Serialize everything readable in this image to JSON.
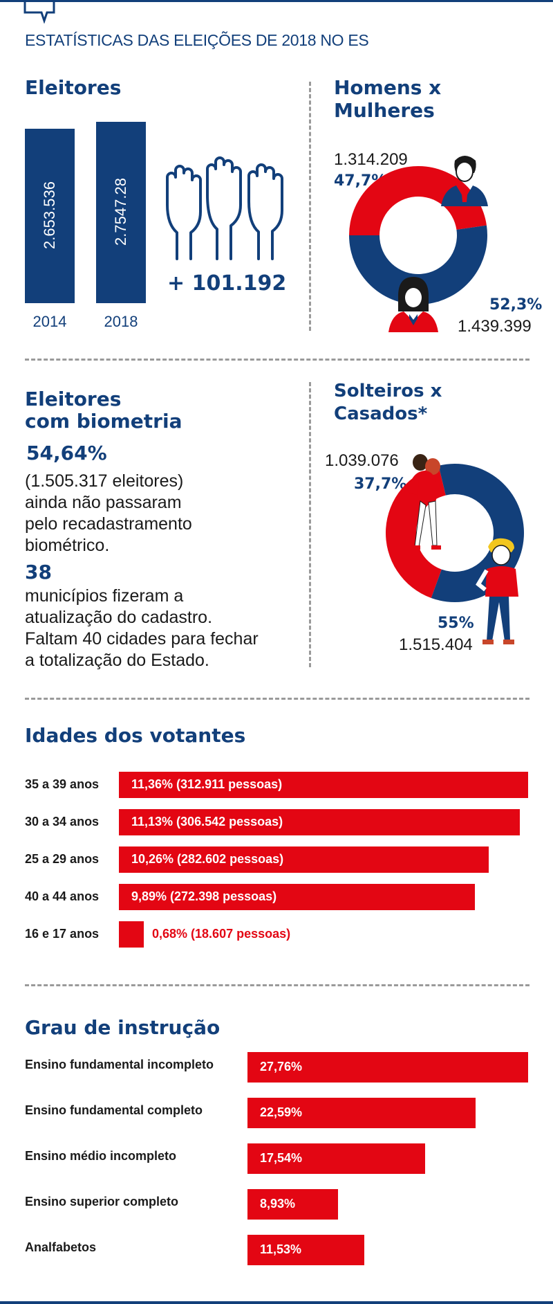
{
  "page": {
    "title": "ESTATÍSTICAS DAS ELEIÇÕES DE 2018 NO ES"
  },
  "colors": {
    "navy": "#123f7a",
    "red": "#e30613",
    "gray": "#9a9a9a"
  },
  "eleitores": {
    "heading": "Eleitores",
    "diff": "+ 101.192",
    "icon": "raised-hands-icon"
  },
  "genero": {
    "heading_line1": "Homens x",
    "heading_line2": "Mulheres",
    "homens_value": "1.314.209",
    "homens_pct": "47,7%",
    "mulheres_value": "1.439.399",
    "mulheres_pct": "52,3%"
  },
  "biometria": {
    "heading_line1": "Eleitores",
    "heading_line2": "com biometria",
    "pct": "54,64%",
    "text_lines": [
      "(1.505.317 eleitores)",
      "ainda não passaram",
      "pelo recadastramento",
      "biométrico."
    ],
    "municipios_num": "38",
    "municipios_lines": [
      "municípios fizeram a",
      "atualização do cadastro.",
      "Faltam 40 cidades para fechar",
      "a totalização do Estado."
    ]
  },
  "estado_civil": {
    "heading_line1": "Solteiros x",
    "heading_line2": "Casados*",
    "casados_value": "1.039.076",
    "casados_pct": "37,7%",
    "solteiros_value": "1.515.404",
    "solteiros_pct": "55%"
  },
  "idades": {
    "heading": "Idades dos votantes"
  },
  "instrucao": {
    "heading": "Grau de instrução"
  },
  "chart_data": [
    {
      "id": "eleitores",
      "type": "bar",
      "categories": [
        "2014",
        "2018"
      ],
      "value_labels": [
        "2.653.536",
        "2.7547.28"
      ],
      "values": [
        2653536,
        2754728
      ]
    },
    {
      "id": "genero",
      "type": "pie",
      "labels": [
        "Homens",
        "Mulheres"
      ],
      "values": [
        47.7,
        52.3
      ]
    },
    {
      "id": "estado_civil",
      "type": "pie",
      "labels": [
        "Casados",
        "Solteiros"
      ],
      "values": [
        37.7,
        55
      ]
    },
    {
      "id": "idades",
      "type": "bar",
      "categories": [
        "35 a 39 anos",
        "30 a 34 anos",
        "25 a 29 anos",
        "40 a 44 anos",
        "16 e 17 anos"
      ],
      "values": [
        11.36,
        11.13,
        10.26,
        9.89,
        0.68
      ],
      "value_labels": [
        "11,36% (312.911 pessoas)",
        "11,13% (306.542 pessoas)",
        "10,26% (282.602 pessoas)",
        "9,89% (272.398 pessoas)",
        "0,68% (18.607 pessoas)"
      ]
    },
    {
      "id": "instrucao",
      "type": "bar",
      "categories": [
        "Ensino fundamental incompleto",
        "Ensino fundamental completo",
        "Ensino médio incompleto",
        "Ensino superior completo",
        "Analfabetos"
      ],
      "values": [
        27.76,
        22.59,
        17.54,
        8.93,
        11.53
      ],
      "value_labels": [
        "27,76%",
        "22,59%",
        "17,54%",
        "8,93%",
        "11,53%"
      ]
    }
  ]
}
